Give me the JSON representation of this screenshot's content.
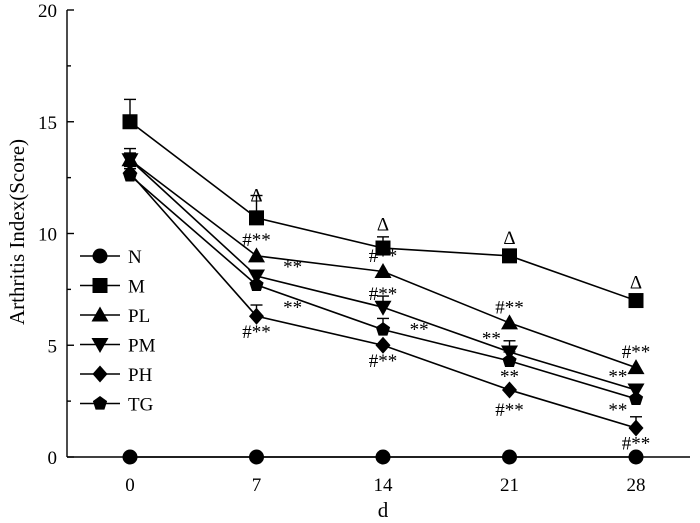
{
  "chart_data": {
    "type": "line",
    "xlabel": "d",
    "ylabel": "Arthritis Index(Score)",
    "x": [
      0,
      7,
      14,
      21,
      28
    ],
    "x_tick_labels": [
      "0",
      "7",
      "14",
      "21",
      "28"
    ],
    "y_ticks": [
      0,
      5,
      10,
      15,
      20
    ],
    "y_tick_labels": [
      "0",
      "5",
      "10",
      "15",
      "20"
    ],
    "ylim": [
      0,
      20
    ],
    "legend_placement": "left",
    "series": [
      {
        "name": "N",
        "marker": "circle",
        "values": [
          0,
          0,
          0,
          0,
          0
        ],
        "errors": [
          0,
          0,
          0,
          0,
          0
        ]
      },
      {
        "name": "M",
        "marker": "square",
        "values": [
          15.0,
          10.7,
          9.35,
          9.0,
          7.0
        ],
        "errors": [
          1.0,
          1.0,
          0.5,
          0,
          0
        ]
      },
      {
        "name": "PL",
        "marker": "triangle-up",
        "values": [
          13.3,
          9.0,
          8.3,
          6.0,
          4.0
        ],
        "errors": [
          0.5,
          0,
          0,
          0,
          0
        ]
      },
      {
        "name": "PM",
        "marker": "triangle-down",
        "values": [
          13.3,
          8.1,
          6.7,
          4.7,
          3.0
        ],
        "errors": [
          0.3,
          0.2,
          0.5,
          0.5,
          0
        ]
      },
      {
        "name": "PH",
        "marker": "diamond",
        "values": [
          12.7,
          6.3,
          5.0,
          3.0,
          1.3
        ],
        "errors": [
          0.3,
          0.5,
          0,
          0,
          0.5
        ]
      },
      {
        "name": "TG",
        "marker": "pentagon",
        "values": [
          12.6,
          7.7,
          5.7,
          4.3,
          2.6
        ],
        "errors": [
          0.3,
          0.5,
          0.5,
          0.4,
          0
        ]
      }
    ],
    "annotations": [
      {
        "x": 7,
        "y": 11.7,
        "text": "Δ"
      },
      {
        "x": 14,
        "y": 10.4,
        "text": "Δ"
      },
      {
        "x": 21,
        "y": 9.8,
        "text": "Δ"
      },
      {
        "x": 28,
        "y": 7.8,
        "text": "Δ"
      },
      {
        "x": 7,
        "y": 9.7,
        "text": "#**"
      },
      {
        "x": 9,
        "y": 8.5,
        "text": "**"
      },
      {
        "x": 9,
        "y": 6.7,
        "text": "**"
      },
      {
        "x": 7,
        "y": 5.6,
        "text": "#**"
      },
      {
        "x": 14,
        "y": 9.0,
        "text": "#**"
      },
      {
        "x": 14,
        "y": 7.3,
        "text": "#**"
      },
      {
        "x": 16,
        "y": 5.7,
        "text": "**"
      },
      {
        "x": 14,
        "y": 4.3,
        "text": "#**"
      },
      {
        "x": 21,
        "y": 6.7,
        "text": "#**"
      },
      {
        "x": 20,
        "y": 5.3,
        "text": "**"
      },
      {
        "x": 21,
        "y": 3.6,
        "text": "**"
      },
      {
        "x": 21,
        "y": 2.1,
        "text": "#**"
      },
      {
        "x": 28,
        "y": 4.7,
        "text": "#**"
      },
      {
        "x": 27,
        "y": 3.6,
        "text": "**"
      },
      {
        "x": 27,
        "y": 2.1,
        "text": "**"
      },
      {
        "x": 28,
        "y": 0.6,
        "text": "#**"
      }
    ]
  }
}
